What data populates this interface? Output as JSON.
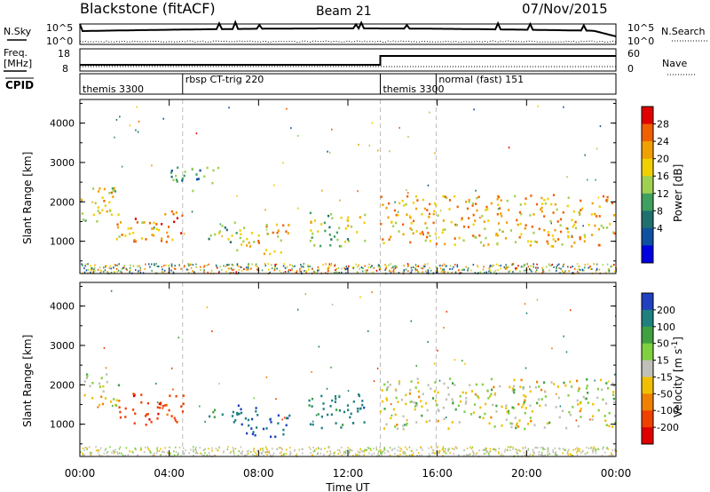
{
  "header": {
    "station": "Blackstone (fitACF)",
    "beam": "Beam 21",
    "date": "07/Nov/2015"
  },
  "noise_panel": {
    "left_label": "N.Sky",
    "right_label": "N.Search",
    "left_ticks": [
      "10^5",
      "10^0"
    ],
    "right_ticks": [
      "10^5",
      "10^0"
    ]
  },
  "freq_panel": {
    "left_label_1": "Freq.",
    "left_label_2": "[MHz]",
    "right_label": "Nave",
    "left_ticks": [
      "18",
      "8"
    ],
    "right_ticks": [
      "60",
      "0"
    ]
  },
  "cpid_panel": {
    "label": "CPID",
    "segments": [
      {
        "start_hour": 0.0,
        "label": "themis 3300"
      },
      {
        "start_hour": 4.6,
        "label": "rbsp CT-trig 220"
      },
      {
        "start_hour": 13.45,
        "label": "themis 3300"
      },
      {
        "start_hour": 15.95,
        "label": "normal (fast) 151"
      }
    ]
  },
  "power_colorbar": {
    "label": "Power [dB]",
    "ticks": [
      "28",
      "24",
      "20",
      "16",
      "12",
      "8",
      "4"
    ],
    "colors": [
      "#e00000",
      "#f06000",
      "#f0a000",
      "#f0d000",
      "#a0d050",
      "#40a060",
      "#207070",
      "#1050a0",
      "#0000e0"
    ]
  },
  "velocity_colorbar": {
    "label": "Velocity [m s",
    "label_sup": "-1",
    "label_end": "]",
    "ticks": [
      "200",
      "100",
      "50",
      "15",
      "-15",
      "-50",
      "-100",
      "-200"
    ],
    "colors": [
      "#2040c0",
      "#208080",
      "#40a040",
      "#80d040",
      "#c0c0b8",
      "#f0c000",
      "#f08000",
      "#f04000",
      "#e00000"
    ]
  },
  "chart_data": {
    "type": "heatmap",
    "title": "Blackstone (fitACF)",
    "xlabel": "Time UT",
    "ylabel": "Slant Range [km]",
    "xlim": [
      0,
      24
    ],
    "ylim": [
      180,
      4600
    ],
    "x_ticks": [
      "00:00",
      "04:00",
      "08:00",
      "12:00",
      "16:00",
      "20:00",
      "00:00"
    ],
    "y_ticks": [
      "1000",
      "2000",
      "3000",
      "4000"
    ],
    "panels": [
      {
        "name": "Power [dB]",
        "regions": [
          {
            "t_start": 0.0,
            "t_end": 1.7,
            "range_start": 1500,
            "range_end": 2500,
            "value": 18
          },
          {
            "t_start": 1.5,
            "t_end": 4.6,
            "range_start": 1000,
            "range_end": 1800,
            "value": 22
          },
          {
            "t_start": 5.6,
            "t_end": 7.0,
            "range_start": 1000,
            "range_end": 1500,
            "value": 12
          },
          {
            "t_start": 7.0,
            "t_end": 9.4,
            "range_start": 700,
            "range_end": 1500,
            "value": 20
          },
          {
            "t_start": 10.2,
            "t_end": 12.8,
            "range_start": 900,
            "range_end": 1800,
            "value": 14
          },
          {
            "t_start": 13.4,
            "t_end": 24.0,
            "range_start": 900,
            "range_end": 2200,
            "value": 20
          },
          {
            "t_start": 4.0,
            "t_end": 6.2,
            "range_start": 2300,
            "range_end": 2900,
            "value": 8
          }
        ]
      },
      {
        "name": "Velocity [m s-1]",
        "regions": [
          {
            "t_start": 0.0,
            "t_end": 1.7,
            "range_start": 1500,
            "range_end": 2300,
            "value": 0
          },
          {
            "t_start": 1.7,
            "t_end": 4.6,
            "range_start": 1000,
            "range_end": 1800,
            "value": -150
          },
          {
            "t_start": 5.6,
            "t_end": 7.0,
            "range_start": 1000,
            "range_end": 1400,
            "value": 120
          },
          {
            "t_start": 7.0,
            "t_end": 9.4,
            "range_start": 700,
            "range_end": 1500,
            "value": 200
          },
          {
            "t_start": 10.2,
            "t_end": 12.8,
            "range_start": 900,
            "range_end": 1800,
            "value": 150
          },
          {
            "t_start": 13.4,
            "t_end": 24.0,
            "range_start": 900,
            "range_end": 2200,
            "value": 0
          }
        ]
      }
    ]
  }
}
